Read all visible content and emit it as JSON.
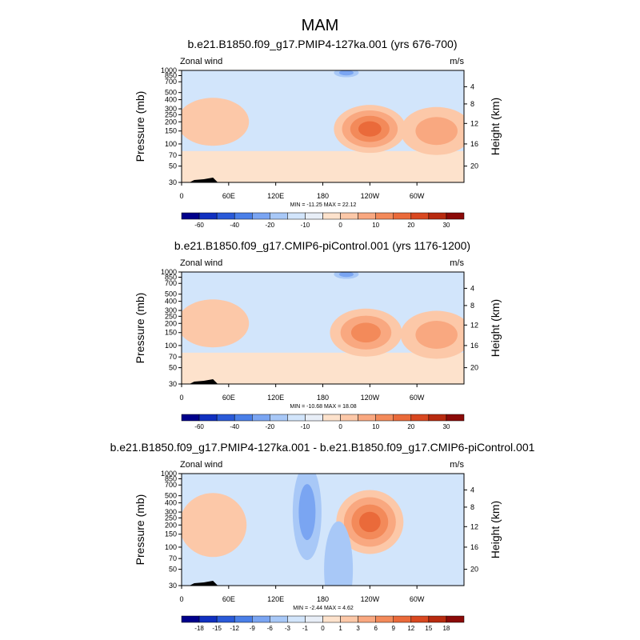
{
  "main_title": "MAM",
  "chart_data": [
    {
      "type": "heatmap",
      "title": "b.e21.B1850.f09_g17.PMIP4-127ka.001 (yrs 676-700)",
      "left_label": "Zonal wind",
      "right_label": "m/s",
      "ylabel": "Pressure (mb)",
      "y2label": "Height (km)",
      "x_ticks": [
        "0",
        "60E",
        "120E",
        "180",
        "120W",
        "60W"
      ],
      "y_ticks": [
        "30",
        "50",
        "70",
        "100",
        "150",
        "200",
        "250",
        "300",
        "400",
        "500",
        "700",
        "850",
        "1000"
      ],
      "y2_ticks": [
        "20",
        "16",
        "12",
        "8",
        "4"
      ],
      "stats": "MIN = -11.25  MAX =  22.12",
      "colorbar_labels": [
        "-60",
        "-40",
        "-20",
        "-10",
        "0",
        "10",
        "20",
        "30"
      ],
      "features": [
        {
          "lon": 240,
          "p": 160,
          "value": 22.12,
          "note": "westerly jet maximum"
        },
        {
          "lon": 325,
          "p": 150,
          "value": 12
        },
        {
          "lon": 40,
          "p": 200,
          "value": 5
        },
        {
          "lon": 110,
          "p": 120,
          "value": -3
        },
        {
          "lon": 210,
          "p": 930,
          "value": -11.25
        }
      ]
    },
    {
      "type": "heatmap",
      "title": "b.e21.B1850.f09_g17.CMIP6-piControl.001 (yrs 1176-1200)",
      "left_label": "Zonal wind",
      "right_label": "m/s",
      "ylabel": "Pressure (mb)",
      "y2label": "Height (km)",
      "x_ticks": [
        "0",
        "60E",
        "120E",
        "180",
        "120W",
        "60W"
      ],
      "y_ticks": [
        "30",
        "50",
        "70",
        "100",
        "150",
        "200",
        "250",
        "300",
        "400",
        "500",
        "700",
        "850",
        "1000"
      ],
      "y2_ticks": [
        "20",
        "16",
        "12",
        "8",
        "4"
      ],
      "stats": "MIN = -10.68  MAX =  18.08",
      "colorbar_labels": [
        "-60",
        "-40",
        "-20",
        "-10",
        "0",
        "10",
        "20",
        "30"
      ],
      "features": [
        {
          "lon": 235,
          "p": 150,
          "value": 18.08,
          "note": "westerly jet maximum"
        },
        {
          "lon": 325,
          "p": 140,
          "value": 10
        },
        {
          "lon": 40,
          "p": 200,
          "value": 5
        },
        {
          "lon": 110,
          "p": 120,
          "value": -3
        },
        {
          "lon": 210,
          "p": 930,
          "value": -10.68
        }
      ]
    },
    {
      "type": "heatmap",
      "title": "b.e21.B1850.f09_g17.PMIP4-127ka.001 - b.e21.B1850.f09_g17.CMIP6-piControl.001",
      "left_label": "Zonal wind",
      "right_label": "m/s",
      "ylabel": "Pressure (mb)",
      "y2label": "Height (km)",
      "x_ticks": [
        "0",
        "60E",
        "120E",
        "180",
        "120W",
        "60W"
      ],
      "y_ticks": [
        "30",
        "50",
        "70",
        "100",
        "150",
        "200",
        "250",
        "300",
        "400",
        "500",
        "700",
        "850",
        "1000"
      ],
      "y2_ticks": [
        "20",
        "16",
        "12",
        "8",
        "4"
      ],
      "stats": "MIN = -2.44  MAX =  4.62",
      "colorbar_labels": [
        "-18",
        "-15",
        "-12",
        "-9",
        "-6",
        "-3",
        "-1",
        "0",
        "1",
        "3",
        "6",
        "9",
        "12",
        "15",
        "18"
      ],
      "features": [
        {
          "lon": 240,
          "p": 220,
          "value": 4.62,
          "note": "difference maximum"
        },
        {
          "lon": 40,
          "p": 200,
          "value": 1.5
        },
        {
          "lon": 160,
          "p": 300,
          "value": -2.44
        },
        {
          "lon": 200,
          "p": 50,
          "value": -1.5
        }
      ]
    }
  ],
  "colors": {
    "neg": [
      "#00008b",
      "#1030c0",
      "#2a5ad8",
      "#4a7fe8",
      "#7aa5f2",
      "#a8c8f7",
      "#d2e5fb"
    ],
    "pos": [
      "#fde2cc",
      "#fcc8a8",
      "#f9a880",
      "#f38a5a",
      "#ea6a3a",
      "#d94820",
      "#b82a0f",
      "#8b0a08"
    ],
    "terrain": "#000000",
    "border": "#000000"
  }
}
